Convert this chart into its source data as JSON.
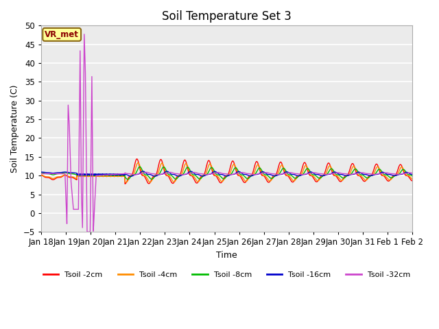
{
  "title": "Soil Temperature Set 3",
  "xlabel": "Time",
  "ylabel": "Soil Temperature (C)",
  "ylim": [
    -5,
    50
  ],
  "xlim": [
    0,
    15.5
  ],
  "x_tick_labels": [
    "Jan 18",
    "Jan 19",
    "Jan 20",
    "Jan 21",
    "Jan 22",
    "Jan 23",
    "Jan 24",
    "Jan 25",
    "Jan 26",
    "Jan 27",
    "Jan 28",
    "Jan 29",
    "Jan 30",
    "Jan 31",
    "Feb 1",
    "Feb 2"
  ],
  "legend_entries": [
    "Tsoil -2cm",
    "Tsoil -4cm",
    "Tsoil -8cm",
    "Tsoil -16cm",
    "Tsoil -32cm"
  ],
  "line_colors": [
    "#ff0000",
    "#ff8c00",
    "#00bb00",
    "#0000cc",
    "#cc44cc"
  ],
  "vr_met_label": "VR_met",
  "plot_bg_color": "#ebebeb",
  "title_fontsize": 12,
  "axis_fontsize": 9,
  "tick_fontsize": 8.5
}
